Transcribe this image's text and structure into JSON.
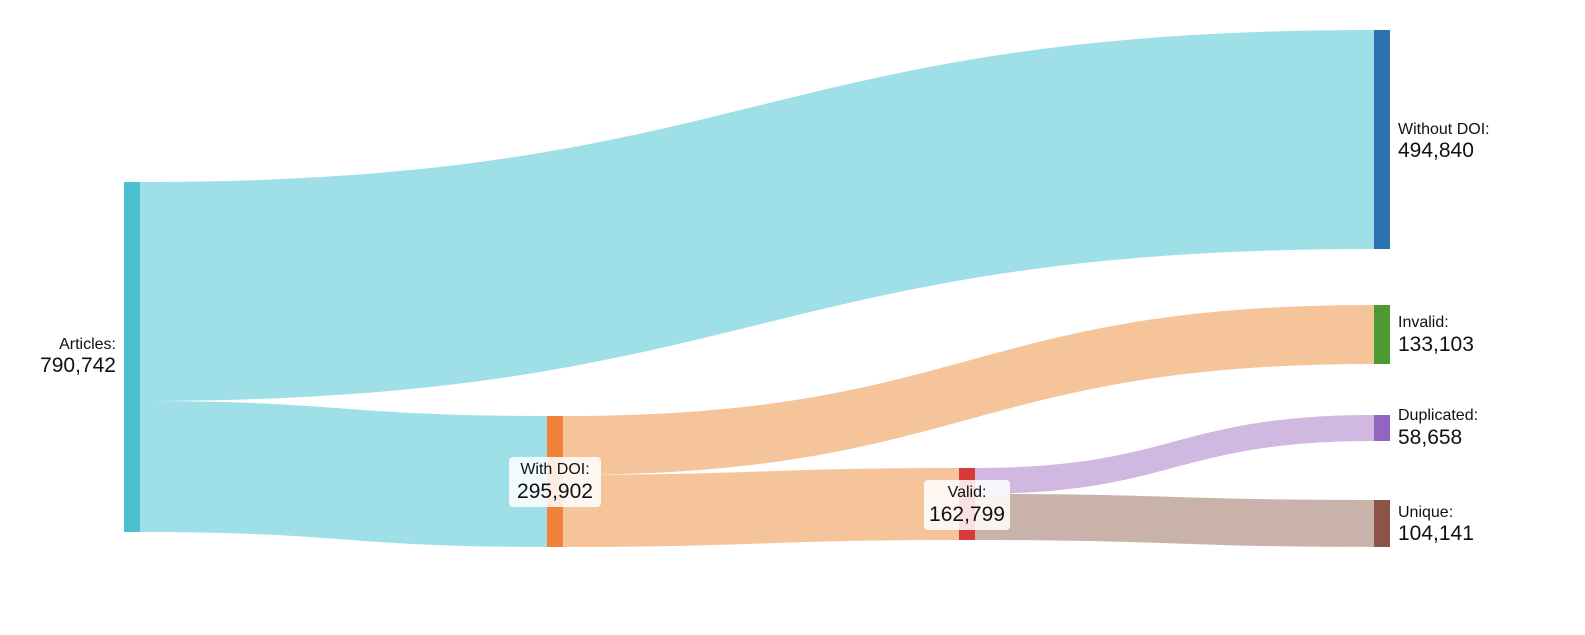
{
  "diagram": {
    "nodes": [
      {
        "id": "articles",
        "name": "Articles:",
        "value": "790,742",
        "color": "#4dc0d0",
        "label_side": "left"
      },
      {
        "id": "with_doi",
        "name": "With DOI:",
        "value": "295,902",
        "color": "#f08239",
        "label_side": "center"
      },
      {
        "id": "valid",
        "name": "Valid:",
        "value": "162,799",
        "color": "#d63a3a",
        "label_side": "center"
      },
      {
        "id": "without_doi",
        "name": "Without DOI:",
        "value": "494,840",
        "color": "#2d72b0",
        "label_side": "right"
      },
      {
        "id": "invalid",
        "name": "Invalid:",
        "value": "133,103",
        "color": "#4e9a32",
        "label_side": "right"
      },
      {
        "id": "duplicated",
        "name": "Duplicated:",
        "value": "58,658",
        "color": "#9165c0",
        "label_side": "right"
      },
      {
        "id": "unique",
        "name": "Unique:",
        "value": "104,141",
        "color": "#8c5446",
        "label_side": "right"
      }
    ],
    "links": [
      {
        "source": "articles",
        "target": "without_doi",
        "value": 494840,
        "color": "#9fe0e8"
      },
      {
        "source": "articles",
        "target": "with_doi",
        "value": 295902,
        "color": "#9fe0e8"
      },
      {
        "source": "with_doi",
        "target": "invalid",
        "value": 133103,
        "color": "#f5c49a"
      },
      {
        "source": "with_doi",
        "target": "valid",
        "value": 162799,
        "color": "#f5c49a"
      },
      {
        "source": "valid",
        "target": "duplicated",
        "value": 58658,
        "color": "#d1b8e0"
      },
      {
        "source": "valid",
        "target": "unique",
        "value": 104141,
        "color": "#c9b2aa"
      }
    ]
  }
}
